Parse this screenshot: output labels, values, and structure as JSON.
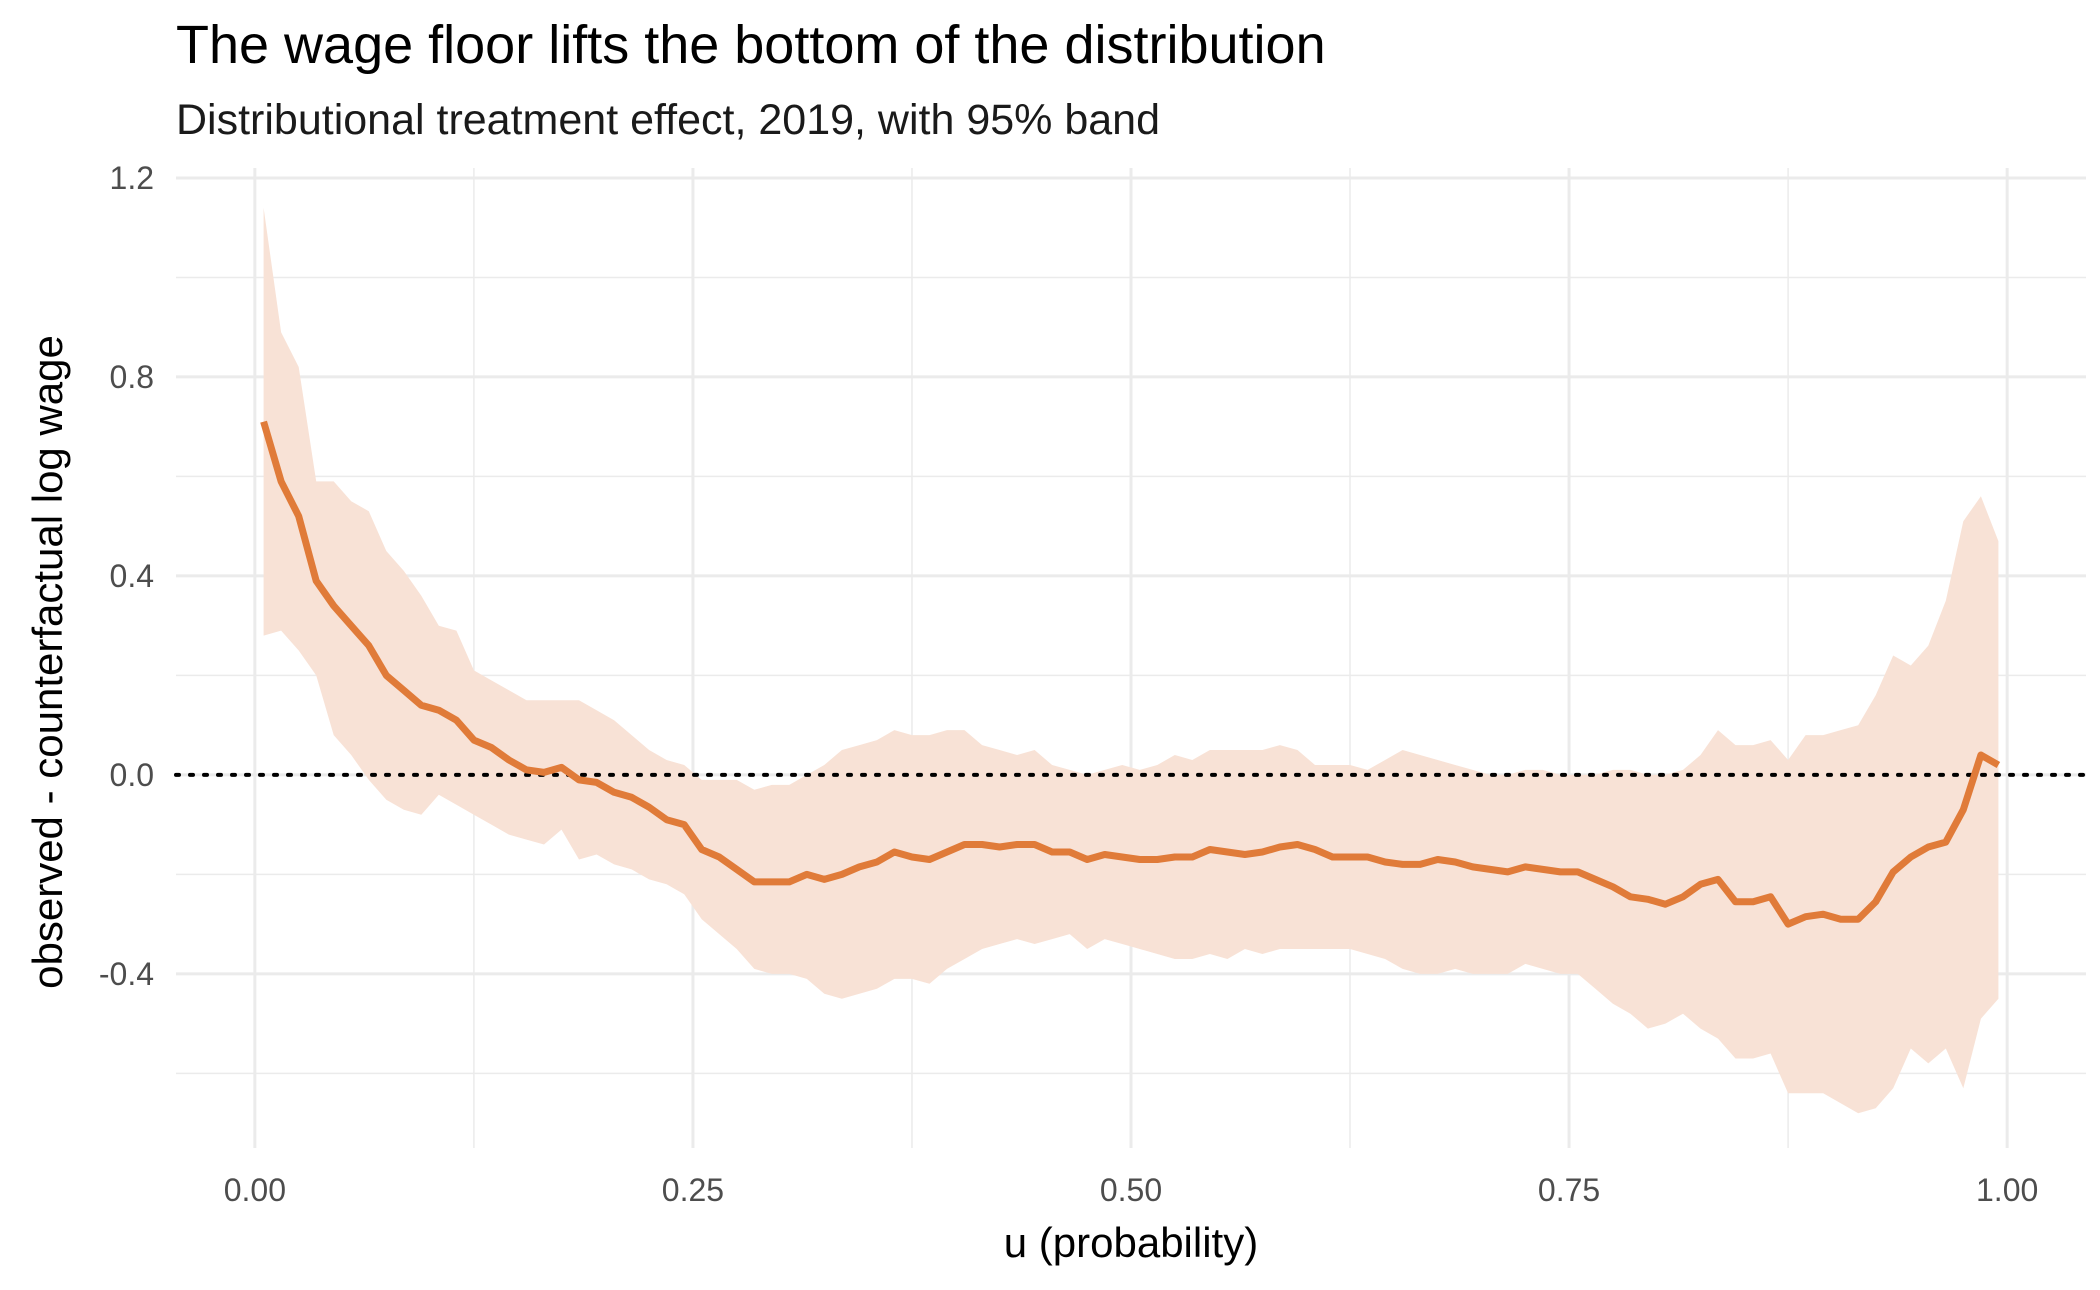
{
  "chart_data": {
    "type": "line",
    "title": "The wage floor lifts the bottom of the distribution",
    "subtitle": "Distributional treatment effect, 2019, with 95% band",
    "xlabel": "u (probability)",
    "ylabel": "observed - counterfactual log wage",
    "xlim": [
      -0.045,
      1.045
    ],
    "ylim": [
      -0.75,
      1.22
    ],
    "x_ticks": [
      {
        "value": 0.0,
        "label": "0.00"
      },
      {
        "value": 0.25,
        "label": "0.25"
      },
      {
        "value": 0.5,
        "label": "0.50"
      },
      {
        "value": 0.75,
        "label": "0.75"
      },
      {
        "value": 1.0,
        "label": "1.00"
      }
    ],
    "y_ticks": [
      {
        "value": 1.2,
        "label": "1.2"
      },
      {
        "value": 0.8,
        "label": "0.8"
      },
      {
        "value": 0.4,
        "label": "0.4"
      },
      {
        "value": 0.0,
        "label": "0.0"
      },
      {
        "value": -0.4,
        "label": "-0.4"
      }
    ],
    "grid": true,
    "reference_line": {
      "y": 0,
      "style": "dotted"
    },
    "colors": {
      "line": "#E07B39",
      "band": "#F8E2D6",
      "grid": "#EBEBEB",
      "reference": "#000000"
    },
    "series": [
      {
        "x": [
          0.005,
          0.015,
          0.025,
          0.035,
          0.045,
          0.055,
          0.065,
          0.075,
          0.085,
          0.095,
          0.105,
          0.115,
          0.125,
          0.135,
          0.145,
          0.155,
          0.165,
          0.175,
          0.185,
          0.195,
          0.205,
          0.215,
          0.225,
          0.235,
          0.245,
          0.255,
          0.265,
          0.275,
          0.285,
          0.295,
          0.305,
          0.315,
          0.325,
          0.335,
          0.345,
          0.355,
          0.365,
          0.375,
          0.385,
          0.395,
          0.405,
          0.415,
          0.425,
          0.435,
          0.445,
          0.455,
          0.465,
          0.475,
          0.485,
          0.495,
          0.505,
          0.515,
          0.525,
          0.535,
          0.545,
          0.555,
          0.565,
          0.575,
          0.585,
          0.595,
          0.605,
          0.615,
          0.625,
          0.635,
          0.645,
          0.655,
          0.665,
          0.675,
          0.685,
          0.695,
          0.705,
          0.715,
          0.725,
          0.735,
          0.745,
          0.755,
          0.765,
          0.775,
          0.785,
          0.795,
          0.805,
          0.815,
          0.825,
          0.835,
          0.845,
          0.855,
          0.865,
          0.875,
          0.885,
          0.895,
          0.905,
          0.915,
          0.925,
          0.935,
          0.945,
          0.955,
          0.965,
          0.975,
          0.985,
          0.995
        ],
        "values": [
          0.71,
          0.59,
          0.52,
          0.39,
          0.34,
          0.3,
          0.26,
          0.2,
          0.17,
          0.14,
          0.13,
          0.11,
          0.07,
          0.055,
          0.03,
          0.01,
          0.005,
          0.015,
          -0.01,
          -0.015,
          -0.035,
          -0.045,
          -0.065,
          -0.09,
          -0.1,
          -0.15,
          -0.165,
          -0.19,
          -0.215,
          -0.215,
          -0.215,
          -0.2,
          -0.21,
          -0.2,
          -0.185,
          -0.175,
          -0.155,
          -0.165,
          -0.17,
          -0.155,
          -0.14,
          -0.14,
          -0.145,
          -0.14,
          -0.14,
          -0.155,
          -0.155,
          -0.17,
          -0.16,
          -0.165,
          -0.17,
          -0.17,
          -0.165,
          -0.165,
          -0.15,
          -0.155,
          -0.16,
          -0.155,
          -0.145,
          -0.14,
          -0.15,
          -0.165,
          -0.165,
          -0.165,
          -0.175,
          -0.18,
          -0.18,
          -0.17,
          -0.175,
          -0.185,
          -0.19,
          -0.195,
          -0.185,
          -0.19,
          -0.195,
          -0.195,
          -0.21,
          -0.225,
          -0.245,
          -0.25,
          -0.26,
          -0.245,
          -0.22,
          -0.21,
          -0.255,
          -0.255,
          -0.245,
          -0.3,
          -0.285,
          -0.28,
          -0.29,
          -0.29,
          -0.255,
          -0.195,
          -0.165,
          -0.145,
          -0.135,
          -0.07,
          0.04,
          0.02
        ],
        "lower": [
          0.28,
          0.29,
          0.25,
          0.2,
          0.08,
          0.04,
          -0.01,
          -0.05,
          -0.07,
          -0.08,
          -0.04,
          -0.06,
          -0.08,
          -0.1,
          -0.12,
          -0.13,
          -0.14,
          -0.11,
          -0.17,
          -0.16,
          -0.18,
          -0.19,
          -0.21,
          -0.22,
          -0.24,
          -0.29,
          -0.32,
          -0.35,
          -0.39,
          -0.4,
          -0.4,
          -0.41,
          -0.44,
          -0.45,
          -0.44,
          -0.43,
          -0.41,
          -0.41,
          -0.42,
          -0.39,
          -0.37,
          -0.35,
          -0.34,
          -0.33,
          -0.34,
          -0.33,
          -0.32,
          -0.35,
          -0.33,
          -0.34,
          -0.35,
          -0.36,
          -0.37,
          -0.37,
          -0.36,
          -0.37,
          -0.35,
          -0.36,
          -0.35,
          -0.35,
          -0.35,
          -0.35,
          -0.35,
          -0.36,
          -0.37,
          -0.39,
          -0.4,
          -0.4,
          -0.39,
          -0.4,
          -0.4,
          -0.4,
          -0.38,
          -0.39,
          -0.4,
          -0.4,
          -0.43,
          -0.46,
          -0.48,
          -0.51,
          -0.5,
          -0.48,
          -0.51,
          -0.53,
          -0.57,
          -0.57,
          -0.56,
          -0.64,
          -0.64,
          -0.64,
          -0.66,
          -0.68,
          -0.67,
          -0.63,
          -0.55,
          -0.58,
          -0.55,
          -0.63,
          -0.49,
          -0.45
        ],
        "upper": [
          1.14,
          0.89,
          0.82,
          0.59,
          0.59,
          0.55,
          0.53,
          0.45,
          0.41,
          0.36,
          0.3,
          0.29,
          0.21,
          0.19,
          0.17,
          0.15,
          0.15,
          0.15,
          0.15,
          0.13,
          0.11,
          0.08,
          0.05,
          0.03,
          0.02,
          -0.01,
          -0.01,
          -0.01,
          -0.03,
          -0.02,
          -0.02,
          0.0,
          0.02,
          0.05,
          0.06,
          0.07,
          0.09,
          0.08,
          0.08,
          0.09,
          0.09,
          0.06,
          0.05,
          0.04,
          0.05,
          0.02,
          0.01,
          0.0,
          0.01,
          0.02,
          0.01,
          0.02,
          0.04,
          0.03,
          0.05,
          0.05,
          0.05,
          0.05,
          0.06,
          0.05,
          0.02,
          0.02,
          0.02,
          0.01,
          0.03,
          0.05,
          0.04,
          0.03,
          0.02,
          0.01,
          0.0,
          0.0,
          0.01,
          0.01,
          0.0,
          0.0,
          0.0,
          0.01,
          0.01,
          0.0,
          0.0,
          0.01,
          0.04,
          0.09,
          0.06,
          0.06,
          0.07,
          0.03,
          0.08,
          0.08,
          0.09,
          0.1,
          0.16,
          0.24,
          0.22,
          0.26,
          0.35,
          0.51,
          0.56,
          0.47
        ]
      }
    ]
  }
}
